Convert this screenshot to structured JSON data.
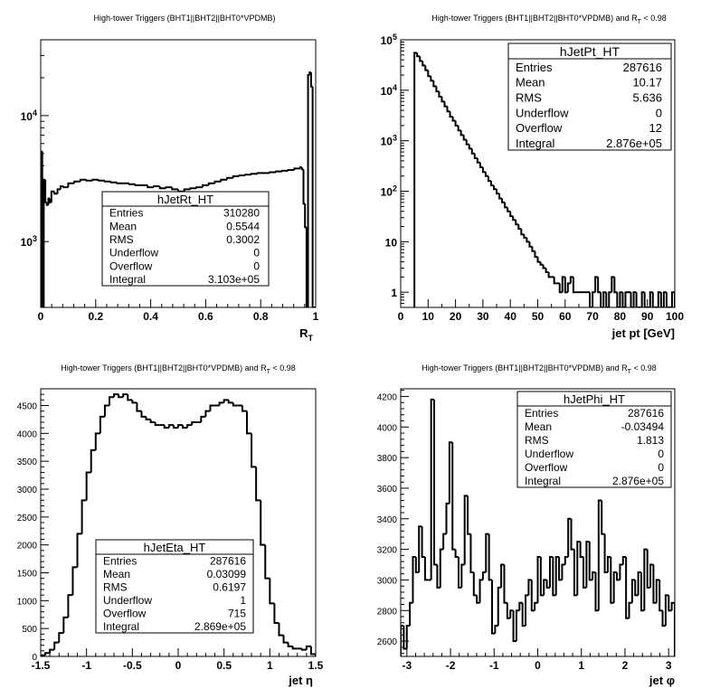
{
  "panels": [
    {
      "title_pre": "High-tower Triggers (BHT1||BHT2||BHT0*VPDMB)",
      "title_sub": "",
      "title_post": "",
      "xlabel_main": "R",
      "xlabel_sub": "T",
      "stats": {
        "name": "hJetRt_HT",
        "rows": [
          {
            "label": "Entries",
            "value": "310280"
          },
          {
            "label": "Mean",
            "value": "0.5544"
          },
          {
            "label": "RMS",
            "value": "0.3002"
          },
          {
            "label": "Underflow",
            "value": "0"
          },
          {
            "label": "Overflow",
            "value": "0"
          },
          {
            "label": "Integral",
            "value": "3.103e+05"
          }
        ]
      }
    },
    {
      "title_pre": "High-tower Triggers (BHT1||BHT2||BHT0*VPDMB) and R",
      "title_sub": "T",
      "title_post": " < 0.98",
      "xlabel_main": "jet pt [GeV]",
      "xlabel_sub": "",
      "stats": {
        "name": "hJetPt_HT",
        "rows": [
          {
            "label": "Entries",
            "value": "287616"
          },
          {
            "label": "Mean",
            "value": "10.17"
          },
          {
            "label": "RMS",
            "value": "5.636"
          },
          {
            "label": "Underflow",
            "value": "0"
          },
          {
            "label": "Overflow",
            "value": "12"
          },
          {
            "label": "Integral",
            "value": "2.876e+05"
          }
        ]
      }
    },
    {
      "title_pre": "High-tower Triggers (BHT1||BHT2||BHT0*VPDMB) and R",
      "title_sub": "T",
      "title_post": " < 0.98",
      "xlabel_main": "jet η",
      "xlabel_sub": "",
      "stats": {
        "name": "hJetEta_HT",
        "rows": [
          {
            "label": "Entries",
            "value": "287616"
          },
          {
            "label": "Mean",
            "value": "0.03099"
          },
          {
            "label": "RMS",
            "value": "0.6197"
          },
          {
            "label": "Underflow",
            "value": "1"
          },
          {
            "label": "Overflow",
            "value": "715"
          },
          {
            "label": "Integral",
            "value": "2.869e+05"
          }
        ]
      }
    },
    {
      "title_pre": "High-tower Triggers (BHT1||BHT2||BHT0*VPDMB) and R",
      "title_sub": "T",
      "title_post": " < 0.98",
      "xlabel_main": "jet φ",
      "xlabel_sub": "",
      "stats": {
        "name": "hJetPhi_HT",
        "rows": [
          {
            "label": "Entries",
            "value": "287616"
          },
          {
            "label": "Mean",
            "value": "-0.03494"
          },
          {
            "label": "RMS",
            "value": "1.813"
          },
          {
            "label": "Underflow",
            "value": "0"
          },
          {
            "label": "Overflow",
            "value": "0"
          },
          {
            "label": "Integral",
            "value": "2.876e+05"
          }
        ]
      }
    }
  ],
  "chart_data": [
    {
      "type": "histogram",
      "name": "hJetRt_HT",
      "xlim": [
        0,
        1
      ],
      "ylim": [
        300,
        40000
      ],
      "log_y": true,
      "x_ticks": [
        0,
        0.2,
        0.4,
        0.6,
        0.8,
        1
      ],
      "x_tick_labels": [
        "0",
        "0.2",
        "0.4",
        "0.6",
        "0.8",
        "1"
      ],
      "y_ticks": [
        1000,
        10000
      ],
      "y_tick_labels": [
        {
          "base": "10",
          "exp": "3"
        },
        {
          "base": "10",
          "exp": "4"
        }
      ],
      "x": [
        0.0,
        0.0056,
        0.0111,
        0.0167,
        0.0222,
        0.0278,
        0.0333,
        0.0389,
        0.05,
        0.0611,
        0.0722,
        0.0833,
        0.1,
        0.1222,
        0.1444,
        0.1667,
        0.1889,
        0.2111,
        0.2333,
        0.2556,
        0.2778,
        0.3,
        0.3222,
        0.3444,
        0.3667,
        0.3889,
        0.4111,
        0.4333,
        0.4556,
        0.4778,
        0.5,
        0.5222,
        0.5444,
        0.5667,
        0.5889,
        0.6111,
        0.6333,
        0.6556,
        0.6778,
        0.7,
        0.7222,
        0.7444,
        0.7667,
        0.7889,
        0.8111,
        0.8333,
        0.8556,
        0.8778,
        0.9,
        0.9222,
        0.9444,
        0.95,
        0.9556,
        0.9611,
        0.9667,
        0.9722,
        0.9778,
        0.9833,
        0.9889,
        0.9944
      ],
      "values": [
        5200,
        280,
        3100,
        2050,
        1950,
        2200,
        2050,
        2500,
        2400,
        2600,
        2750,
        2700,
        2900,
        3000,
        3100,
        3050,
        3100,
        3050,
        3000,
        2950,
        2900,
        2900,
        2850,
        2800,
        2800,
        2700,
        2750,
        2650,
        2700,
        2600,
        2500,
        2600,
        2650,
        2700,
        2800,
        2900,
        3000,
        3100,
        3200,
        3300,
        3350,
        3400,
        3450,
        3500,
        3500,
        3550,
        3600,
        3650,
        3700,
        3800,
        3900,
        3750,
        2000,
        1300,
        300,
        21000,
        22000,
        17000,
        280,
        0
      ]
    },
    {
      "type": "histogram",
      "name": "hJetPt_HT",
      "xlim": [
        0,
        100
      ],
      "ylim": [
        0.5,
        100000
      ],
      "log_y": true,
      "x_ticks": [
        0,
        10,
        20,
        30,
        40,
        50,
        60,
        70,
        80,
        90,
        100
      ],
      "x_tick_labels": [
        "0",
        "10",
        "20",
        "30",
        "40",
        "50",
        "60",
        "70",
        "80",
        "90",
        "100"
      ],
      "y_ticks": [
        1,
        10,
        100,
        1000,
        10000,
        100000
      ],
      "y_tick_labels": [
        {
          "base": "1",
          "exp": ""
        },
        {
          "base": "10",
          "exp": ""
        },
        {
          "base": "10",
          "exp": "2"
        },
        {
          "base": "10",
          "exp": "3"
        },
        {
          "base": "10",
          "exp": "4"
        },
        {
          "base": "10",
          "exp": "5"
        }
      ],
      "x": [
        5,
        6,
        7,
        8,
        9,
        10,
        11,
        12,
        13,
        14,
        15,
        16,
        17,
        18,
        19,
        20,
        21,
        22,
        23,
        24,
        25,
        26,
        27,
        28,
        29,
        30,
        31,
        32,
        33,
        34,
        35,
        36,
        37,
        38,
        39,
        40,
        41,
        42,
        43,
        44,
        45,
        46,
        47,
        48,
        49,
        50,
        51,
        52,
        53,
        54,
        55,
        56,
        57,
        58,
        59,
        60,
        61,
        62,
        63,
        64,
        65,
        66,
        67,
        68,
        69,
        70,
        71,
        72,
        73,
        74,
        75,
        76,
        77,
        78,
        79,
        80,
        81,
        82,
        83,
        84,
        85,
        86,
        87,
        88,
        89,
        90,
        91,
        92,
        93,
        94,
        95,
        96,
        97,
        98,
        99
      ],
      "values": [
        55000,
        47000,
        38000,
        31000,
        25000,
        19000,
        15500,
        12000,
        9500,
        7500,
        6000,
        4800,
        3800,
        3000,
        2500,
        2000,
        1600,
        1300,
        1050,
        850,
        700,
        560,
        450,
        370,
        300,
        240,
        200,
        160,
        130,
        110,
        90,
        72,
        60,
        48,
        40,
        32,
        27,
        22,
        18,
        14,
        12,
        10,
        8,
        6.5,
        5,
        4,
        3.5,
        3,
        2.5,
        2,
        2,
        1.5,
        1.5,
        1,
        2,
        1,
        1.5,
        2,
        1,
        1,
        1,
        1,
        1,
        1,
        0.3,
        1,
        2,
        1,
        0.3,
        1,
        0.3,
        1,
        2,
        1,
        0.3,
        1,
        0.3,
        1,
        1,
        0.3,
        1,
        0.3,
        0.3,
        1,
        0.3,
        0.3,
        1,
        0.3,
        0.3,
        1,
        0.3,
        1,
        0.3,
        0.3,
        1
      ]
    },
    {
      "type": "histogram",
      "name": "hJetEta_HT",
      "xlim": [
        -1.5,
        1.5
      ],
      "ylim": [
        0,
        4800
      ],
      "log_y": false,
      "x_ticks": [
        -1.5,
        -1,
        -0.5,
        0,
        0.5,
        1,
        1.5
      ],
      "x_tick_labels": [
        "-1.5",
        "-1",
        "-0.5",
        "0",
        "0.5",
        "1",
        "1.5"
      ],
      "y_ticks": [
        0,
        500,
        1000,
        1500,
        2000,
        2500,
        3000,
        3500,
        4000,
        4500
      ],
      "y_tick_labels": [
        "0",
        "500",
        "1000",
        "1500",
        "2000",
        "2500",
        "3000",
        "3500",
        "4000",
        "4500"
      ],
      "x": [
        -1.5,
        -1.45,
        -1.4,
        -1.35,
        -1.3,
        -1.25,
        -1.2,
        -1.15,
        -1.1,
        -1.05,
        -1.0,
        -0.95,
        -0.9,
        -0.85,
        -0.8,
        -0.75,
        -0.7,
        -0.65,
        -0.6,
        -0.55,
        -0.5,
        -0.45,
        -0.4,
        -0.35,
        -0.3,
        -0.25,
        -0.2,
        -0.15,
        -0.1,
        -0.05,
        0.0,
        0.05,
        0.1,
        0.15,
        0.2,
        0.25,
        0.3,
        0.35,
        0.4,
        0.45,
        0.5,
        0.55,
        0.6,
        0.65,
        0.7,
        0.75,
        0.8,
        0.85,
        0.9,
        0.95,
        1.0,
        1.05,
        1.1,
        1.15,
        1.2,
        1.25,
        1.3,
        1.35,
        1.4,
        1.45
      ],
      "values": [
        20,
        60,
        120,
        250,
        420,
        700,
        1100,
        1600,
        2200,
        2800,
        3300,
        3700,
        4000,
        4300,
        4500,
        4650,
        4700,
        4650,
        4700,
        4600,
        4550,
        4400,
        4300,
        4250,
        4200,
        4150,
        4150,
        4100,
        4150,
        4100,
        4150,
        4100,
        4150,
        4200,
        4200,
        4300,
        4400,
        4500,
        4500,
        4550,
        4600,
        4550,
        4500,
        4500,
        4400,
        4000,
        3400,
        2800,
        2000,
        1400,
        950,
        600,
        380,
        250,
        180,
        140,
        140,
        120,
        180,
        40
      ]
    },
    {
      "type": "histogram",
      "name": "hJetPhi_HT",
      "xlim": [
        -3.1416,
        3.1416
      ],
      "ylim": [
        2500,
        4250
      ],
      "log_y": false,
      "x_ticks": [
        -3,
        -2,
        -1,
        0,
        1,
        2,
        3
      ],
      "x_tick_labels": [
        "-3",
        "-2",
        "-1",
        "0",
        "1",
        "2",
        "3"
      ],
      "y_ticks": [
        2600,
        2800,
        3000,
        3200,
        3400,
        3600,
        3800,
        4000,
        4200
      ],
      "y_tick_labels": [
        "2600",
        "2800",
        "3000",
        "3200",
        "3400",
        "3600",
        "3800",
        "4000",
        "4200"
      ],
      "x": [
        -3.1416,
        -3.0718,
        -3.002,
        -2.9322,
        -2.8623,
        -2.7925,
        -2.7227,
        -2.6529,
        -2.5831,
        -2.5133,
        -2.4435,
        -2.3736,
        -2.3038,
        -2.234,
        -2.1642,
        -2.0944,
        -2.0246,
        -1.9548,
        -1.885,
        -1.8151,
        -1.7453,
        -1.6755,
        -1.6057,
        -1.5359,
        -1.4661,
        -1.3963,
        -1.3265,
        -1.2566,
        -1.1868,
        -1.117,
        -1.0472,
        -0.9774,
        -0.9076,
        -0.8378,
        -0.7679,
        -0.6981,
        -0.6283,
        -0.5585,
        -0.4887,
        -0.4189,
        -0.3491,
        -0.2793,
        -0.2094,
        -0.1396,
        -0.0698,
        0.0,
        0.0698,
        0.1396,
        0.2094,
        0.2793,
        0.3491,
        0.4189,
        0.4887,
        0.5585,
        0.6283,
        0.6981,
        0.7679,
        0.8378,
        0.9076,
        0.9774,
        1.0472,
        1.117,
        1.1868,
        1.2566,
        1.3265,
        1.3963,
        1.4661,
        1.5359,
        1.6057,
        1.6755,
        1.7453,
        1.8151,
        1.885,
        1.9548,
        2.0246,
        2.0944,
        2.1642,
        2.234,
        2.3038,
        2.3736,
        2.4435,
        2.5133,
        2.5831,
        2.6529,
        2.7227,
        2.7925,
        2.8623,
        2.9322,
        3.002,
        3.0718
      ],
      "values": [
        2700,
        2550,
        2700,
        2850,
        3150,
        3050,
        3350,
        3150,
        3000,
        3000,
        4180,
        3100,
        2950,
        3200,
        3300,
        3500,
        3900,
        3200,
        3150,
        2950,
        3100,
        3550,
        3300,
        3050,
        2900,
        2850,
        3000,
        3050,
        3300,
        3000,
        2650,
        2700,
        2950,
        3100,
        2850,
        2750,
        2800,
        2600,
        2800,
        2850,
        2700,
        2900,
        3000,
        2800,
        2850,
        3150,
        2900,
        3000,
        2950,
        3150,
        2900,
        3150,
        3000,
        3100,
        3150,
        3400,
        3200,
        2900,
        3250,
        3150,
        2950,
        3250,
        3000,
        3050,
        2800,
        3520,
        3300,
        3050,
        3150,
        2850,
        3050,
        3000,
        3100,
        3150,
        2750,
        2850,
        3000,
        2900,
        3050,
        2800,
        3200,
        2950,
        3100,
        2850,
        3000,
        2800,
        2700,
        2900,
        2800,
        2850
      ]
    }
  ]
}
